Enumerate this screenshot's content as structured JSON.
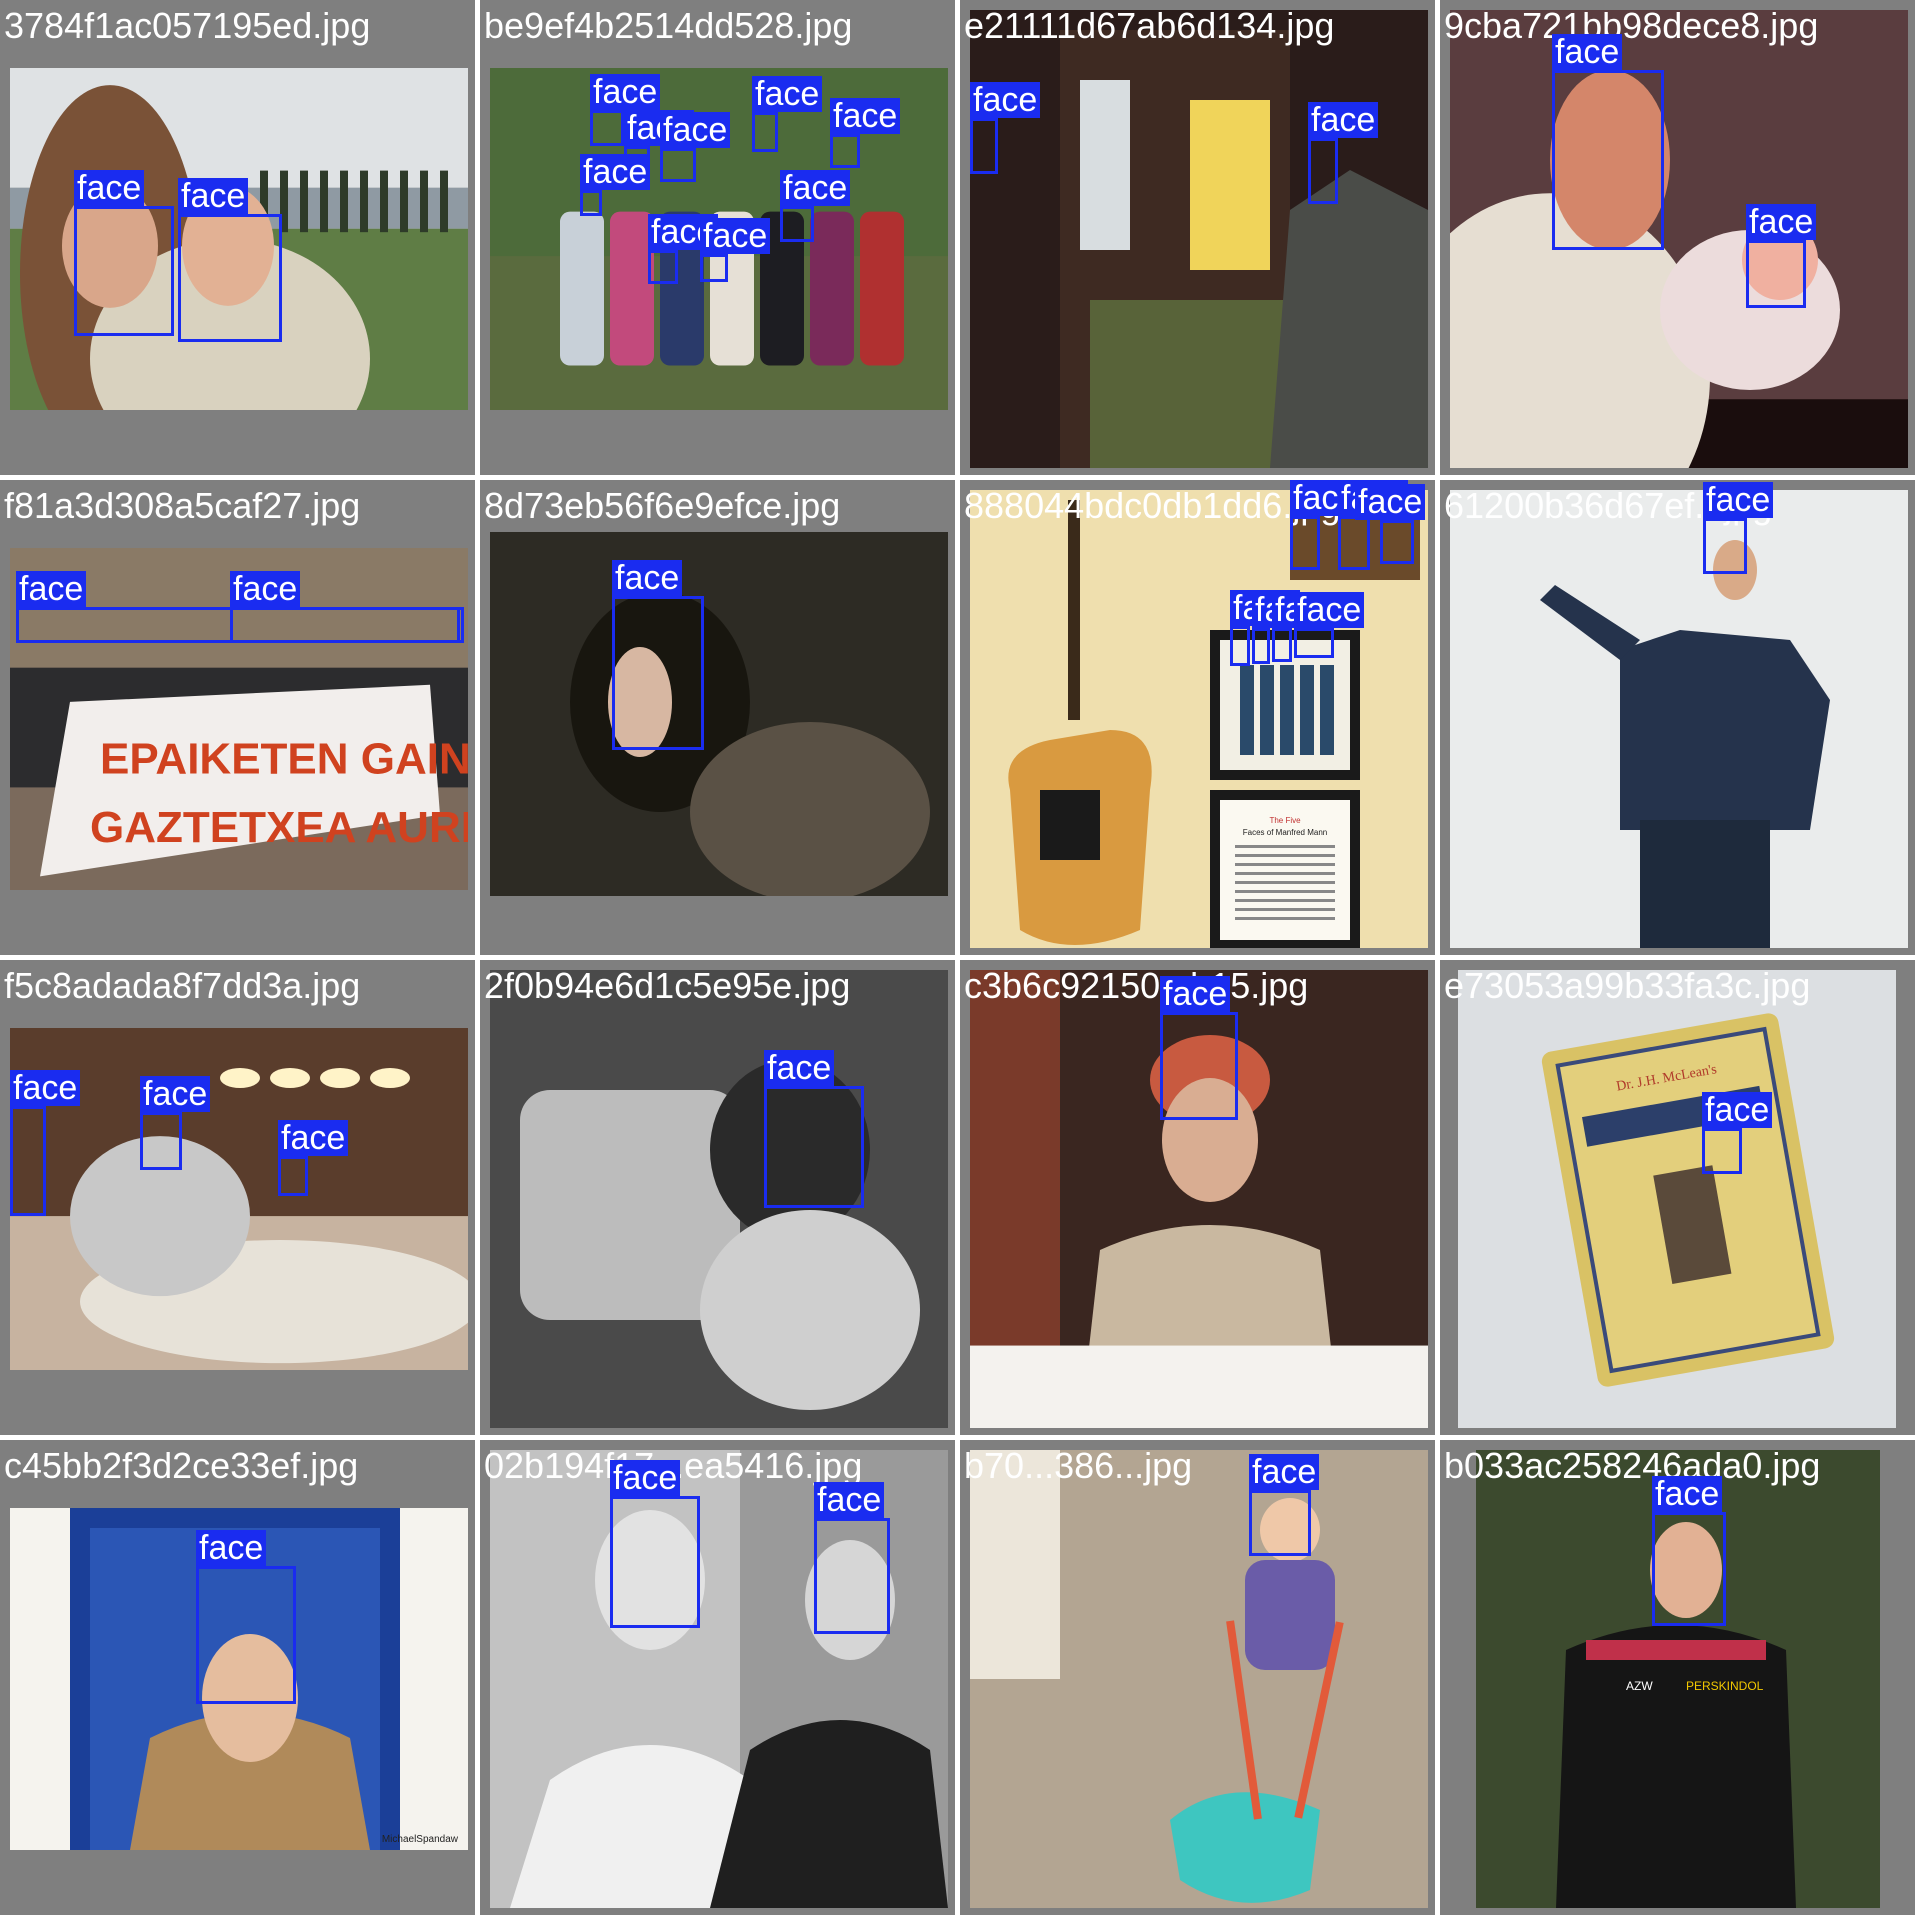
{
  "label_color": "#1a2cf0",
  "tile_background": "#7f7f7f",
  "tiles": [
    {
      "filename": "3784f1ac057195ed.jpg",
      "scene": "golf-course-couple",
      "detections": [
        "face",
        "face"
      ]
    },
    {
      "filename": "be9ef4b2514dd528.jpg",
      "scene": "group-in-garden",
      "detections": [
        "face",
        "face",
        "face",
        "face",
        "face",
        "face",
        "face",
        "face",
        "face"
      ]
    },
    {
      "filename": "e21111d67ab6d134.jpg",
      "scene": "arcade-machine",
      "detections": [
        "face",
        "face"
      ]
    },
    {
      "filename": "9cba721bb98dece8.jpg",
      "scene": "father-with-baby",
      "detections": [
        "face",
        "face"
      ]
    },
    {
      "filename": "f81a3d308a5caf27.jpg",
      "scene": "protest-banner",
      "detections": [
        "face",
        "face"
      ],
      "banner_text": [
        "EPAIKETEN GAINETIK",
        "GAZTETXEA AURRERA"
      ]
    },
    {
      "filename": "8d73eb56f6e9efce.jpg",
      "scene": "painting-woman",
      "detections": [
        "face"
      ]
    },
    {
      "filename": "888044bdc0db1dd6.jpg",
      "scene": "guitar-wall-frames",
      "detections": [
        "face",
        "face",
        "face",
        "face",
        "face",
        "face",
        "face"
      ],
      "frame_text": [
        "The Five",
        "Faces of Manfred Mann"
      ]
    },
    {
      "filename": "61200b36d67ef...jpg",
      "scene": "man-presenting",
      "detections": [
        "face"
      ]
    },
    {
      "filename": "f5c8adada8f7dd3a.jpg",
      "scene": "restaurant-diners",
      "detections": [
        "face",
        "face",
        "face"
      ]
    },
    {
      "filename": "2f0b94e6d1c5e95e.jpg",
      "scene": "child-on-chair",
      "detections": [
        "face"
      ]
    },
    {
      "filename": "c3b6c92150...b15.jpg",
      "scene": "woman-in-cap",
      "detections": [
        "face"
      ]
    },
    {
      "filename": "e73053a99b33fa3c.jpg",
      "scene": "old-card",
      "detections": [
        "face"
      ],
      "card_text": "Dr. J.H. McLean's"
    },
    {
      "filename": "c45bb2f3d2ce33ef.jpg",
      "scene": "woman-in-blue-door",
      "detections": [
        "face"
      ],
      "watermark": "MichaelSpandaw"
    },
    {
      "filename": "02b194f17...ea5416.jpg",
      "scene": "two-women-bw",
      "detections": [
        "face",
        "face"
      ]
    },
    {
      "filename": "b70...386...jpg",
      "scene": "toddler-with-wheelbarrow",
      "detections": [
        "face"
      ]
    },
    {
      "filename": "b033ac258246ada0.jpg",
      "scene": "runner",
      "detections": [
        "face"
      ],
      "bib_text": [
        "AZW",
        "PERSKINDOL"
      ]
    }
  ]
}
